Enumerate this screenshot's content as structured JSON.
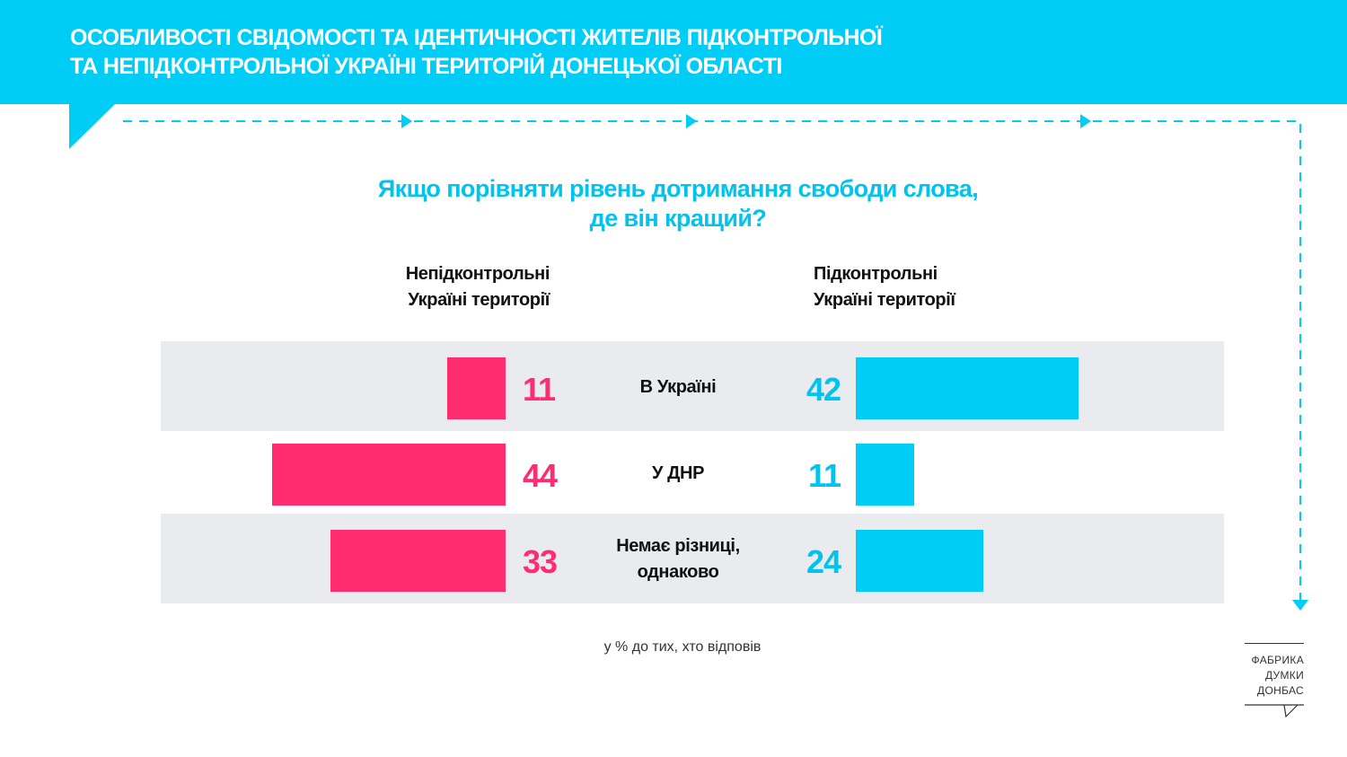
{
  "header": {
    "title_line1": "ОСОБЛИВОСТІ СВІДОМОСТІ ТА ІДЕНТИЧНОСТІ ЖИТЕЛІВ ПІДКОНТРОЛЬНОЇ",
    "title_line2": "ТА НЕПІДКОНТРОЛЬНОЇ УКРАЇНІ ТЕРИТОРІЙ ДОНЕЦЬКОЇ ОБЛАСТІ"
  },
  "colors": {
    "accent_cyan": "#00cdf5",
    "accent_pink": "#ff2d6f",
    "band_gray": "#e9ebee"
  },
  "chart_data": {
    "type": "bar",
    "orientation": "horizontal-diverging",
    "title_line1": "Якщо порівняти рівень дотримання свободи слова,",
    "title_line2": "де він кращий?",
    "left_group": {
      "label_line1": "Непідконтрольні",
      "label_line2": "Україні території"
    },
    "right_group": {
      "label_line1": "Підконтрольні",
      "label_line2": "Україні території"
    },
    "categories": [
      {
        "line1": "В Україні",
        "line2": ""
      },
      {
        "line1": "У ДНР",
        "line2": ""
      },
      {
        "line1": "Немає різниці,",
        "line2": "однаково"
      }
    ],
    "series": [
      {
        "values": [
          11,
          44,
          33
        ],
        "color": "#ff2d6f"
      },
      {
        "values": [
          42,
          11,
          24
        ],
        "color": "#00cdf5"
      }
    ],
    "value_max": 44,
    "footnote": "у % до тих, хто відповів"
  },
  "logo": {
    "line1": "ФАБРИКА",
    "line2": "ДУМКИ",
    "line3": "ДОНБАС"
  }
}
